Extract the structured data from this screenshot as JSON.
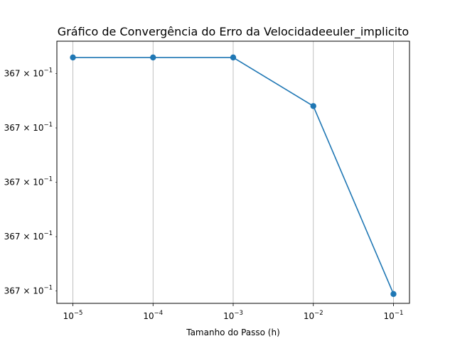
{
  "chart_data": {
    "type": "line",
    "title": "Gráfico de Convergência do Erro da Velocidadeeuler_implicito",
    "xlabel": "Tamanho do Passo (h)",
    "ylabel": "",
    "x_scale": "log",
    "y_scale": "log",
    "x": [
      1e-05,
      0.0001,
      0.001,
      0.01,
      0.1
    ],
    "y_relative": [
      1.0,
      1.0,
      1.0,
      0.74,
      -0.266
    ],
    "xlim_log10": [
      -5.2,
      -0.8
    ],
    "ylim_relative": [
      -0.316,
      1.087
    ],
    "xticks": [
      {
        "exp": "−5",
        "value": 1e-05
      },
      {
        "exp": "−4",
        "value": 0.0001
      },
      {
        "exp": "−3",
        "value": 0.001
      },
      {
        "exp": "−2",
        "value": 0.01
      },
      {
        "exp": "−1",
        "value": 0.1
      }
    ],
    "yticks": [
      {
        "mantissa": "367",
        "exp": "−1",
        "rel": 0.914
      },
      {
        "mantissa": "367",
        "exp": "−1",
        "rel": 0.623
      },
      {
        "mantissa": "367",
        "exp": "−1",
        "rel": 0.332
      },
      {
        "mantissa": "367",
        "exp": "−1",
        "rel": 0.041
      },
      {
        "mantissa": "367",
        "exp": "−1",
        "rel": -0.25
      }
    ],
    "grid": "x-major",
    "color": "#1f77b4"
  }
}
